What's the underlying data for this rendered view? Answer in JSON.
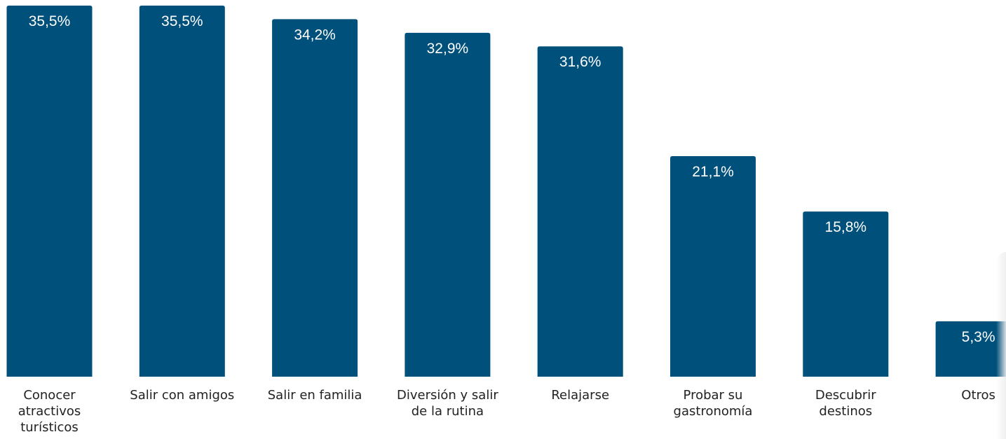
{
  "chart_data": {
    "type": "bar",
    "categories": [
      [
        "Conocer",
        "atractivos",
        "turísticos"
      ],
      [
        "Salir con amigos"
      ],
      [
        "Salir en familia"
      ],
      [
        "Diversión y salir",
        "de la rutina"
      ],
      [
        "Relajarse"
      ],
      [
        "Probar su",
        "gastronomía"
      ],
      [
        "Descubrir",
        "destinos"
      ],
      [
        "Otros"
      ]
    ],
    "values": [
      35.5,
      35.5,
      34.2,
      32.9,
      31.6,
      21.1,
      15.8,
      5.3
    ],
    "value_labels": [
      "35,5%",
      "35,5%",
      "34,2%",
      "32,9%",
      "31,6%",
      "21,1%",
      "15,8%",
      "5,3%"
    ],
    "title": "",
    "xlabel": "",
    "ylabel": "",
    "grid": false,
    "legend": "none",
    "colors": {
      "bar": "#00507c",
      "value_label": "#ffffff",
      "category_label": "#222222"
    }
  }
}
